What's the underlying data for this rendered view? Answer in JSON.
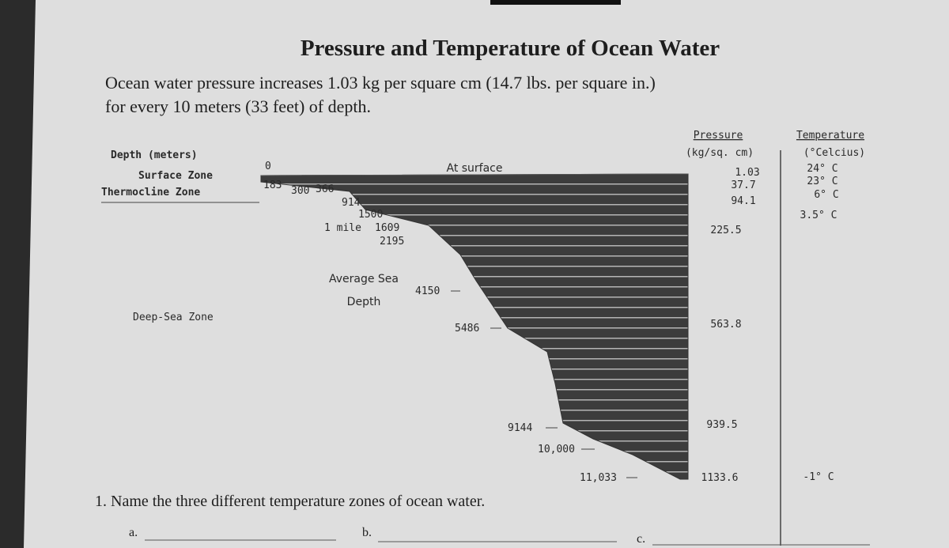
{
  "header": {
    "title": "Pressure and Temperature of Ocean Water",
    "intro": [
      "Ocean water pressure increases 1.03 kg per square cm (14.7 lbs. per square in.)",
      "for every 10 meters (33 feet) of depth."
    ]
  },
  "diagram": {
    "depth_heading": "Depth (meters)",
    "zones": [
      "Surface Zone",
      "Thermocline Zone",
      "Deep-Sea Zone"
    ],
    "surface_label": "At surface",
    "average_label": [
      "Average Sea",
      "Depth"
    ],
    "depths": [
      "0",
      "183",
      "300",
      "366",
      "914",
      "1500",
      "1 mile",
      "1609",
      "2195",
      "4150",
      "5486",
      "9144",
      "10,000",
      "11,033"
    ],
    "pressure_heading": [
      "Pressure",
      "(kg/sq. cm)"
    ],
    "pressures": [
      "1.03",
      "37.7",
      "94.1",
      "225.5",
      "563.8",
      "939.5",
      "1133.6"
    ],
    "temperature_heading": [
      "Temperature",
      "(°Celcius)"
    ],
    "temperatures": [
      "24° C",
      "23° C",
      "6° C",
      "3.5° C",
      "-1° C"
    ]
  },
  "question": {
    "text": "1. Name the three different temperature zones of ocean water.",
    "answers": [
      "a.",
      "b.",
      "c."
    ]
  }
}
